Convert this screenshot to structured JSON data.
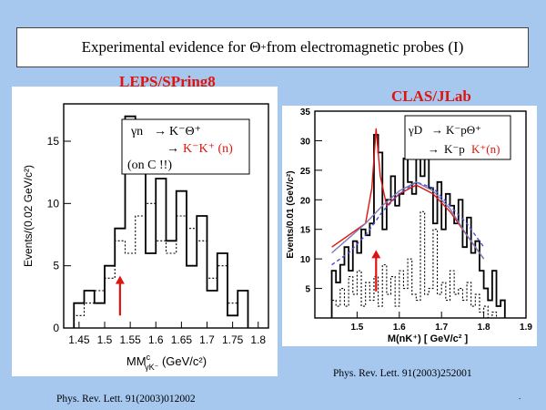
{
  "slide": {
    "title_prefix": "Experimental evidence for ",
    "title_symbol": "Θ",
    "title_sup": "+",
    "title_suffix": " from electromagnetic probes (I)",
    "footer_mark": "."
  },
  "leps": {
    "lab": "LEPS/SPring8",
    "reference": "Phys. Rev. Lett. 91(2003)012002",
    "legend": {
      "line1_lhs": "γn",
      "line1_rhs": "K⁻Θ⁺",
      "line2_rhs": "K⁻K⁺ (n)",
      "line3": "(on C !!)"
    }
  },
  "clas": {
    "lab": "CLAS/JLab",
    "reference": "Phys. Rev. Lett. 91(2003)252001",
    "legend": {
      "line1_lhs": "γD",
      "line1_rhs": "K⁻pΘ⁺",
      "line2_black": "K⁻p",
      "line2_red": "K⁺(n)"
    }
  },
  "chart_data": [
    {
      "type": "histogram",
      "xlabel": "MM",
      "xlabel_sup": "c",
      "xlabel_sub": "γK⁻",
      "xlabel_unit": " (GeV/c²)",
      "ylabel": "Events/(0.02 GeV/c²)",
      "xlim": [
        1.42,
        1.82
      ],
      "ylim": [
        0,
        18
      ],
      "x_ticks": [
        "1.45",
        "1.5",
        "1.55",
        "1.6",
        "1.65",
        "1.7",
        "1.75",
        "1.8"
      ],
      "y_ticks": [
        "0",
        "5",
        "10",
        "15"
      ],
      "bin_width": 0.02,
      "bin_starts": [
        1.44,
        1.46,
        1.48,
        1.5,
        1.52,
        1.54,
        1.56,
        1.58,
        1.6,
        1.62,
        1.64,
        1.66,
        1.68,
        1.7,
        1.72,
        1.74,
        1.76
      ],
      "series": [
        {
          "name": "",
          "style": "solid",
          "color": "#000000",
          "values": [
            2,
            3,
            2,
            5,
            8,
            17,
            14,
            6,
            12,
            7,
            11,
            5,
            9,
            3,
            6,
            1,
            3
          ]
        },
        {
          "name": "",
          "style": "dotted",
          "color": "#000000",
          "values": [
            1,
            2,
            3,
            4,
            7,
            6,
            9,
            10,
            7,
            6,
            9,
            8,
            7,
            4,
            5,
            2,
            3
          ]
        }
      ],
      "peak_arrow": {
        "x": 1.53,
        "y_from": 1.0,
        "y_to": 4.2,
        "color": "#e0140e"
      }
    },
    {
      "type": "histogram",
      "xlabel": "M(nK⁺) [ GeV/c² ]",
      "ylabel": "Events/0.01 (GeV/c²)",
      "xlim": [
        1.4,
        1.9
      ],
      "ylim": [
        0,
        35
      ],
      "x_ticks": [
        "1.5",
        "1.6",
        "1.7",
        "1.8",
        "1.9"
      ],
      "y_ticks": [
        "5",
        "10",
        "15",
        "20",
        "25",
        "30",
        "35"
      ],
      "bin_width": 0.01,
      "bin_starts": [
        1.44,
        1.45,
        1.46,
        1.47,
        1.48,
        1.49,
        1.5,
        1.51,
        1.52,
        1.53,
        1.54,
        1.55,
        1.56,
        1.57,
        1.58,
        1.59,
        1.6,
        1.61,
        1.62,
        1.63,
        1.64,
        1.65,
        1.66,
        1.67,
        1.68,
        1.69,
        1.7,
        1.71,
        1.72,
        1.73,
        1.74,
        1.75,
        1.76,
        1.77,
        1.78,
        1.79,
        1.8,
        1.81,
        1.82,
        1.83,
        1.84
      ],
      "series": [
        {
          "name": "",
          "style": "solid",
          "color": "#000000",
          "values": [
            8,
            6,
            9,
            12,
            8,
            13,
            11,
            15,
            14,
            16,
            31,
            28,
            15,
            20,
            24,
            19,
            21,
            27,
            23,
            21,
            29,
            24,
            30,
            22,
            16,
            23,
            15,
            21,
            19,
            16,
            20,
            12,
            17,
            11,
            13,
            8,
            5,
            3,
            8,
            2,
            3
          ]
        },
        {
          "name": "",
          "style": "dotted",
          "color": "#000000",
          "values": [
            3,
            2,
            5,
            2,
            7,
            4,
            8,
            2,
            6,
            3,
            7,
            2,
            9,
            4,
            7,
            2,
            8,
            5,
            10,
            4,
            3,
            18,
            4,
            5,
            15,
            4,
            6,
            3,
            8,
            4,
            5,
            3,
            6,
            2,
            4,
            1,
            2,
            0,
            1,
            0,
            0
          ]
        }
      ],
      "fit_curves": [
        {
          "name": "",
          "color": "#e0140e",
          "points": [
            [
              1.44,
              12
            ],
            [
              1.48,
              14
            ],
            [
              1.52,
              16
            ],
            [
              1.535,
              22
            ],
            [
              1.545,
              32
            ],
            [
              1.555,
              24
            ],
            [
              1.57,
              19
            ],
            [
              1.6,
              21
            ],
            [
              1.64,
              22.5
            ],
            [
              1.68,
              21
            ],
            [
              1.72,
              18
            ],
            [
              1.76,
              14
            ],
            [
              1.8,
              10
            ]
          ]
        },
        {
          "name": "",
          "color": "#4b4bd6",
          "style": "dashed",
          "points": [
            [
              1.44,
              9
            ],
            [
              1.48,
              11
            ],
            [
              1.52,
              14
            ],
            [
              1.56,
              18
            ],
            [
              1.6,
              21
            ],
            [
              1.64,
              23
            ],
            [
              1.68,
              22
            ],
            [
              1.72,
              19
            ],
            [
              1.76,
              16
            ],
            [
              1.8,
              12
            ]
          ]
        },
        {
          "name": "",
          "color": "#7a7ab8",
          "points": [
            [
              1.44,
              11
            ],
            [
              1.48,
              13.5
            ],
            [
              1.52,
              16
            ],
            [
              1.56,
              19
            ],
            [
              1.6,
              21.5
            ],
            [
              1.64,
              23
            ],
            [
              1.68,
              21.5
            ],
            [
              1.72,
              18.5
            ],
            [
              1.76,
              14
            ],
            [
              1.8,
              10
            ]
          ]
        }
      ],
      "peak_arrow": {
        "x": 1.545,
        "y_from": 4.5,
        "y_to": 11.5,
        "color": "#e0140e"
      }
    }
  ]
}
